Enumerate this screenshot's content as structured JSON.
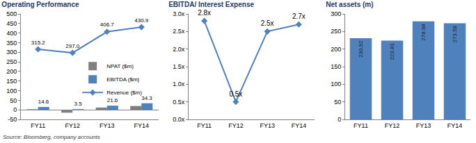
{
  "chart_data": [
    {
      "type": "bar",
      "title": "Operating Performance",
      "categories": [
        "FY11",
        "FY12",
        "FY13",
        "FY14"
      ],
      "series": [
        {
          "name": "NPAT ($m)",
          "type": "bar",
          "color": "#808080",
          "values": [
            3,
            -15,
            12,
            20
          ]
        },
        {
          "name": "EBITDA ($m)",
          "type": "bar",
          "color": "#4F81BD",
          "values": [
            14.6,
            3.5,
            21.6,
            34.3
          ],
          "value_labels": [
            "14.6",
            "3.5",
            "21.6",
            "34.3"
          ]
        },
        {
          "name": "Revenue ($m)",
          "type": "line",
          "color": "#4F81BD",
          "marker": "diamond",
          "values": [
            315.2,
            297.0,
            406.7,
            430.9
          ],
          "value_labels": [
            "315.2",
            "297.0",
            "406.7",
            "430.9"
          ]
        }
      ],
      "ylim": [
        -50,
        500
      ],
      "yticks": [
        -50,
        0,
        50,
        100,
        150,
        200,
        250,
        300,
        350,
        400,
        450,
        500
      ],
      "grid": false,
      "legend": "center",
      "data_labels": true
    },
    {
      "type": "line",
      "title": "EBITDA/ Interest Expense",
      "categories": [
        "FY11",
        "FY12",
        "FY13",
        "FY14"
      ],
      "series": [
        {
          "name": "EBITDA/ Interest Expense",
          "color": "#4F81BD",
          "marker": "diamond",
          "values": [
            2.8,
            0.5,
            2.5,
            2.7
          ],
          "value_labels": [
            "2.8x",
            "0.5x",
            "2.5x",
            "2.7x"
          ]
        }
      ],
      "ylim": [
        0,
        3
      ],
      "yticks": [
        {
          "value": 0,
          "label": "0.0x"
        },
        {
          "value": 0.5,
          "label": "0.5x"
        },
        {
          "value": 1,
          "label": "1.0x"
        },
        {
          "value": 1.5,
          "label": "1.5x"
        },
        {
          "value": 2,
          "label": "2.0x"
        },
        {
          "value": 2.5,
          "label": "2.5x"
        },
        {
          "value": 3,
          "label": "3.0x"
        }
      ],
      "grid": false,
      "data_labels": true
    },
    {
      "type": "bar",
      "title": "Net assets (m)",
      "categories": [
        "FY11",
        "FY12",
        "FY13",
        "FY14"
      ],
      "series": [
        {
          "name": "Net assets (m)",
          "color": "#4F81BD",
          "values": [
            230.92,
            223.81,
            278.98,
            273.58
          ]
        }
      ],
      "ylim": [
        0,
        300
      ],
      "yticks": [
        0,
        50,
        100,
        150,
        200,
        250,
        300
      ],
      "grid": false,
      "data_labels": true
    }
  ],
  "source": "Source: Bloomberg, company accounts"
}
